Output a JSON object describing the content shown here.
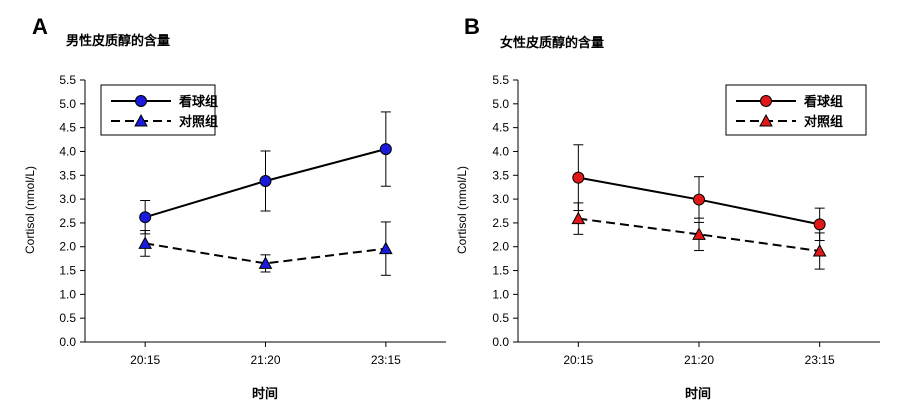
{
  "chart_data": [
    {
      "type": "line",
      "panel_label": "A",
      "title": "男性皮质醇的含量",
      "xlabel": "时间",
      "ylabel": "Cortisol (nmol/L)",
      "categories": [
        "20:15",
        "21:20",
        "23:15"
      ],
      "ylim": [
        0,
        5.5
      ],
      "yticks": [
        "0.0",
        "0.5",
        "1.0",
        "1.5",
        "2.0",
        "2.5",
        "3.0",
        "3.5",
        "4.0",
        "4.5",
        "5.0",
        "5.5"
      ],
      "legend_position": "top-left",
      "series": [
        {
          "name": "看球组",
          "values": [
            2.62,
            3.38,
            4.05
          ],
          "err": [
            0.35,
            0.63,
            0.78
          ],
          "marker": "circle",
          "line": "solid",
          "color": "#1a1adc"
        },
        {
          "name": "对照组",
          "values": [
            2.07,
            1.65,
            1.96
          ],
          "err": [
            0.27,
            0.18,
            0.56
          ],
          "marker": "triangle",
          "line": "dashed",
          "color": "#1a1adc"
        }
      ]
    },
    {
      "type": "line",
      "panel_label": "B",
      "title": "女性皮质醇的含量",
      "xlabel": "时间",
      "ylabel": "Cortisol (nmol/L)",
      "categories": [
        "20:15",
        "21:20",
        "23:15"
      ],
      "ylim": [
        0,
        5.5
      ],
      "yticks": [
        "0.0",
        "0.5",
        "1.0",
        "1.5",
        "2.0",
        "2.5",
        "3.0",
        "3.5",
        "4.0",
        "4.5",
        "5.0",
        "5.5"
      ],
      "legend_position": "top-right",
      "series": [
        {
          "name": "看球组",
          "values": [
            3.45,
            2.99,
            2.47
          ],
          "err": [
            0.69,
            0.48,
            0.34
          ],
          "marker": "circle",
          "line": "solid",
          "color": "#e01818"
        },
        {
          "name": "对照组",
          "values": [
            2.59,
            2.26,
            1.91
          ],
          "err": [
            0.33,
            0.34,
            0.38
          ],
          "marker": "triangle",
          "line": "dashed",
          "color": "#e01818"
        }
      ]
    }
  ]
}
